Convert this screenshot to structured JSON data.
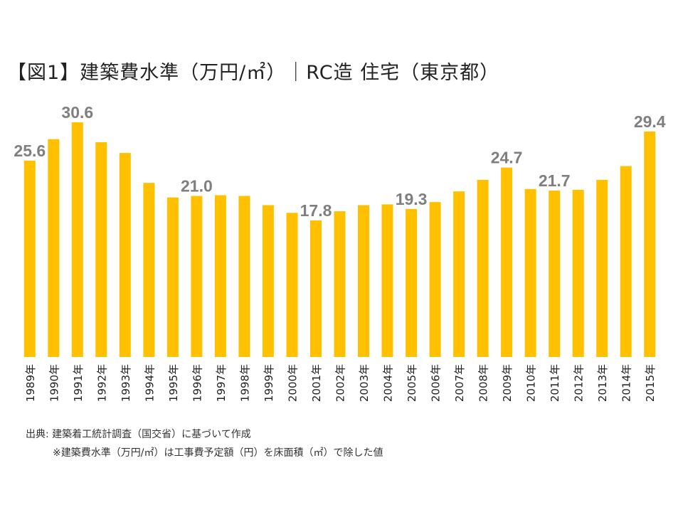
{
  "title": "【図1】建築費水準（万円/㎡）｜RC造 住宅（東京都）",
  "source": "出典: 建築着工統計調査（国交省）に基づいて作成",
  "note": "※建築費水準（万円/㎡）は工事費予定額（円）を床面積（㎡）で除した値",
  "colors": {
    "bar": "#FFC000",
    "value_label": "#7f7f7f",
    "axis_text": "#222222"
  },
  "chart_data": {
    "type": "bar",
    "title": "【図1】建築費水準（万円/㎡）｜RC造 住宅（東京都）",
    "xlabel": "",
    "ylabel": "",
    "ylim": [
      0,
      31.5
    ],
    "grid": false,
    "categories": [
      "1989年",
      "1990年",
      "1991年",
      "1992年",
      "1993年",
      "1994年",
      "1995年",
      "1996年",
      "1997年",
      "1998年",
      "1999年",
      "2000年",
      "2001年",
      "2002年",
      "2003年",
      "2004年",
      "2005年",
      "2006年",
      "2007年",
      "2008年",
      "2009年",
      "2010年",
      "2011年",
      "2012年",
      "2013年",
      "2014年",
      "2015年"
    ],
    "values": [
      25.6,
      28.4,
      30.6,
      28.0,
      26.6,
      22.7,
      20.8,
      21.0,
      21.1,
      21.0,
      19.8,
      18.8,
      17.8,
      19.0,
      19.8,
      19.9,
      19.3,
      20.2,
      21.6,
      23.1,
      24.7,
      21.9,
      21.7,
      21.8,
      23.1,
      24.9,
      29.4
    ],
    "data_labels": [
      {
        "index": 0,
        "text": "25.6"
      },
      {
        "index": 2,
        "text": "30.6"
      },
      {
        "index": 7,
        "text": "21.0"
      },
      {
        "index": 12,
        "text": "17.8"
      },
      {
        "index": 16,
        "text": "19.3"
      },
      {
        "index": 20,
        "text": "24.7"
      },
      {
        "index": 22,
        "text": "21.7"
      },
      {
        "index": 26,
        "text": "29.4"
      }
    ]
  }
}
